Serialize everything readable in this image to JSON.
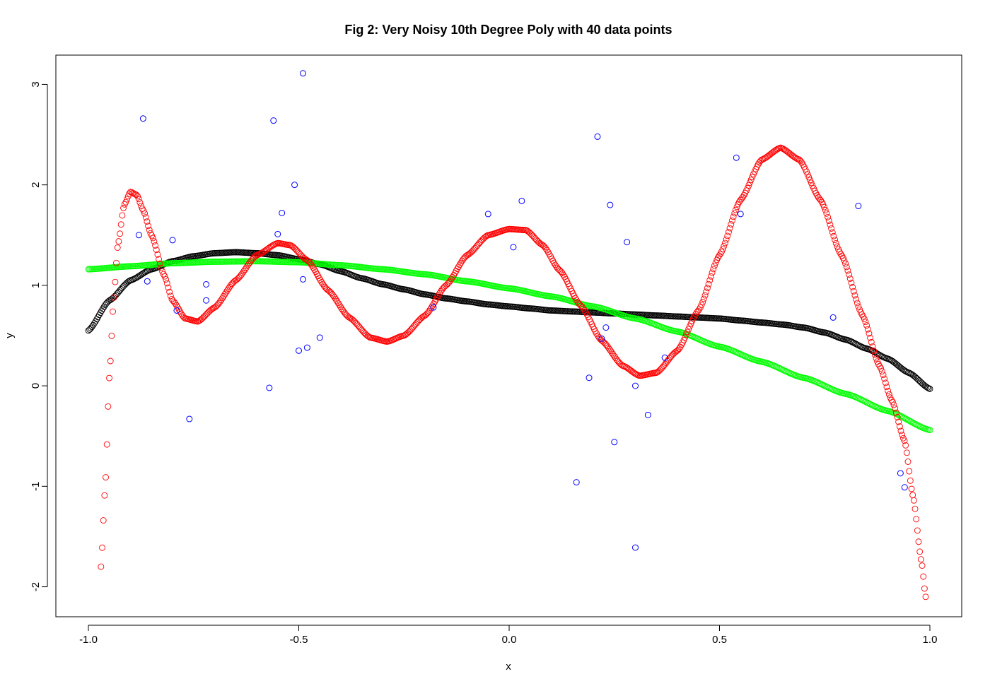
{
  "chart_data": {
    "type": "scatter",
    "title": "Fig 2: Very Noisy 10th Degree Poly with 40 data points",
    "xlabel": "x",
    "ylabel": "y",
    "xlim": [
      -1.0,
      1.0
    ],
    "ylim": [
      -2.2,
      3.2
    ],
    "x_ticks": [
      {
        "value": -1.0,
        "label": "-1.0"
      },
      {
        "value": -0.5,
        "label": "-0.5"
      },
      {
        "value": 0.0,
        "label": "0.0"
      },
      {
        "value": 0.5,
        "label": "0.5"
      },
      {
        "value": 1.0,
        "label": "1.0"
      }
    ],
    "y_ticks": [
      {
        "value": -2,
        "label": "-2"
      },
      {
        "value": -1,
        "label": "-1"
      },
      {
        "value": 0,
        "label": "0"
      },
      {
        "value": 1,
        "label": "1"
      },
      {
        "value": 2,
        "label": "2"
      },
      {
        "value": 3,
        "label": "3"
      }
    ],
    "grid": false,
    "legend": false,
    "series": [
      {
        "color": "#0000ff",
        "marker": "open-circle",
        "points": [
          [
            -0.88,
            1.5
          ],
          [
            -0.87,
            2.66
          ],
          [
            -0.86,
            1.04
          ],
          [
            -0.8,
            1.45
          ],
          [
            -0.79,
            0.75
          ],
          [
            -0.76,
            -0.33
          ],
          [
            -0.72,
            1.01
          ],
          [
            -0.72,
            0.85
          ],
          [
            -0.57,
            -0.02
          ],
          [
            -0.56,
            2.64
          ],
          [
            -0.55,
            1.51
          ],
          [
            -0.54,
            1.72
          ],
          [
            -0.51,
            2.0
          ],
          [
            -0.5,
            0.35
          ],
          [
            -0.49,
            3.11
          ],
          [
            -0.49,
            1.06
          ],
          [
            -0.48,
            0.38
          ],
          [
            -0.45,
            0.48
          ],
          [
            -0.18,
            0.78
          ],
          [
            -0.05,
            1.71
          ],
          [
            0.01,
            1.38
          ],
          [
            0.03,
            1.84
          ],
          [
            0.16,
            -0.96
          ],
          [
            0.19,
            0.08
          ],
          [
            0.21,
            2.48
          ],
          [
            0.22,
            0.47
          ],
          [
            0.23,
            0.58
          ],
          [
            0.24,
            1.8
          ],
          [
            0.25,
            -0.56
          ],
          [
            0.28,
            1.43
          ],
          [
            0.3,
            -1.61
          ],
          [
            0.3,
            0.0
          ],
          [
            0.33,
            -0.29
          ],
          [
            0.37,
            0.28
          ],
          [
            0.54,
            2.27
          ],
          [
            0.55,
            1.71
          ],
          [
            0.77,
            0.68
          ],
          [
            0.83,
            1.79
          ],
          [
            0.93,
            -0.87
          ],
          [
            0.94,
            -1.01
          ]
        ]
      },
      {
        "color": "#ff0000",
        "marker": "open-circle",
        "domain": [
          -0.97,
          0.99
        ],
        "knots": [
          [
            -0.97,
            -1.8
          ],
          [
            -0.96,
            -1.0
          ],
          [
            -0.95,
            0.1
          ],
          [
            -0.94,
            0.85
          ],
          [
            -0.93,
            1.4
          ],
          [
            -0.915,
            1.8
          ],
          [
            -0.9,
            1.93
          ],
          [
            -0.885,
            1.9
          ],
          [
            -0.87,
            1.75
          ],
          [
            -0.85,
            1.5
          ],
          [
            -0.82,
            1.1
          ],
          [
            -0.8,
            0.85
          ],
          [
            -0.77,
            0.67
          ],
          [
            -0.74,
            0.64
          ],
          [
            -0.7,
            0.78
          ],
          [
            -0.65,
            1.05
          ],
          [
            -0.6,
            1.3
          ],
          [
            -0.55,
            1.42
          ],
          [
            -0.52,
            1.4
          ],
          [
            -0.48,
            1.25
          ],
          [
            -0.43,
            0.95
          ],
          [
            -0.38,
            0.68
          ],
          [
            -0.33,
            0.48
          ],
          [
            -0.29,
            0.44
          ],
          [
            -0.25,
            0.5
          ],
          [
            -0.2,
            0.7
          ],
          [
            -0.15,
            1.0
          ],
          [
            -0.1,
            1.3
          ],
          [
            -0.05,
            1.5
          ],
          [
            0.0,
            1.56
          ],
          [
            0.04,
            1.55
          ],
          [
            0.08,
            1.4
          ],
          [
            0.12,
            1.15
          ],
          [
            0.17,
            0.8
          ],
          [
            0.22,
            0.45
          ],
          [
            0.27,
            0.2
          ],
          [
            0.31,
            0.1
          ],
          [
            0.35,
            0.13
          ],
          [
            0.4,
            0.35
          ],
          [
            0.45,
            0.75
          ],
          [
            0.5,
            1.3
          ],
          [
            0.55,
            1.85
          ],
          [
            0.6,
            2.25
          ],
          [
            0.645,
            2.37
          ],
          [
            0.69,
            2.25
          ],
          [
            0.74,
            1.85
          ],
          [
            0.79,
            1.3
          ],
          [
            0.84,
            0.7
          ],
          [
            0.88,
            0.2
          ],
          [
            0.91,
            -0.15
          ],
          [
            0.94,
            -0.55
          ],
          [
            0.96,
            -1.1
          ],
          [
            0.98,
            -1.75
          ],
          [
            0.99,
            -2.1
          ]
        ]
      },
      {
        "color": "#000000",
        "marker": "open-circle",
        "domain": [
          -1.0,
          1.0
        ],
        "knots": [
          [
            -1.0,
            0.55
          ],
          [
            -0.95,
            0.85
          ],
          [
            -0.9,
            1.05
          ],
          [
            -0.85,
            1.16
          ],
          [
            -0.8,
            1.24
          ],
          [
            -0.75,
            1.29
          ],
          [
            -0.7,
            1.32
          ],
          [
            -0.65,
            1.33
          ],
          [
            -0.6,
            1.32
          ],
          [
            -0.55,
            1.3
          ],
          [
            -0.5,
            1.26
          ],
          [
            -0.45,
            1.21
          ],
          [
            -0.4,
            1.14
          ],
          [
            -0.35,
            1.07
          ],
          [
            -0.3,
            1.01
          ],
          [
            -0.25,
            0.96
          ],
          [
            -0.2,
            0.91
          ],
          [
            -0.15,
            0.87
          ],
          [
            -0.1,
            0.84
          ],
          [
            -0.05,
            0.81
          ],
          [
            0.0,
            0.79
          ],
          [
            0.05,
            0.77
          ],
          [
            0.1,
            0.75
          ],
          [
            0.15,
            0.74
          ],
          [
            0.2,
            0.73
          ],
          [
            0.25,
            0.72
          ],
          [
            0.3,
            0.71
          ],
          [
            0.35,
            0.7
          ],
          [
            0.4,
            0.69
          ],
          [
            0.45,
            0.68
          ],
          [
            0.5,
            0.67
          ],
          [
            0.55,
            0.65
          ],
          [
            0.6,
            0.63
          ],
          [
            0.65,
            0.61
          ],
          [
            0.7,
            0.58
          ],
          [
            0.75,
            0.53
          ],
          [
            0.8,
            0.46
          ],
          [
            0.85,
            0.37
          ],
          [
            0.9,
            0.27
          ],
          [
            0.95,
            0.13
          ],
          [
            1.0,
            -0.03
          ]
        ]
      },
      {
        "color": "#00ff00",
        "marker": "open-circle",
        "domain": [
          -1.0,
          1.0
        ],
        "knots": [
          [
            -1.0,
            1.16
          ],
          [
            -0.9,
            1.19
          ],
          [
            -0.8,
            1.22
          ],
          [
            -0.7,
            1.235
          ],
          [
            -0.6,
            1.24
          ],
          [
            -0.5,
            1.23
          ],
          [
            -0.4,
            1.2
          ],
          [
            -0.3,
            1.16
          ],
          [
            -0.2,
            1.11
          ],
          [
            -0.1,
            1.04
          ],
          [
            0.0,
            0.97
          ],
          [
            0.1,
            0.89
          ],
          [
            0.2,
            0.79
          ],
          [
            0.3,
            0.67
          ],
          [
            0.4,
            0.54
          ],
          [
            0.5,
            0.39
          ],
          [
            0.6,
            0.24
          ],
          [
            0.7,
            0.08
          ],
          [
            0.8,
            -0.08
          ],
          [
            0.9,
            -0.25
          ],
          [
            1.0,
            -0.44
          ]
        ]
      }
    ]
  }
}
